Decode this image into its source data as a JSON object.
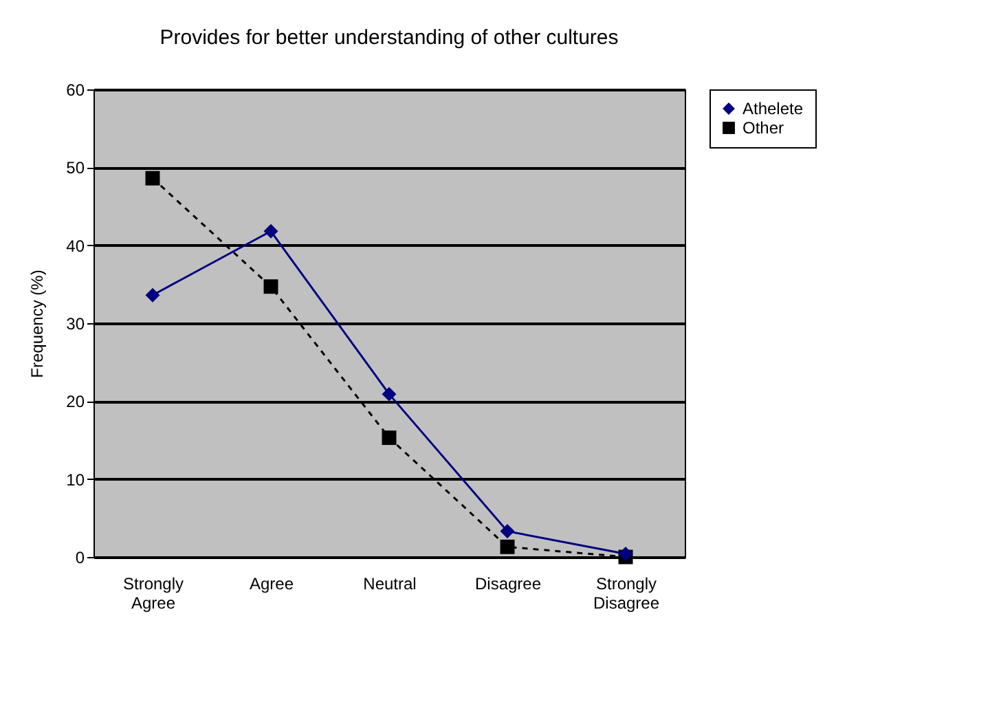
{
  "chart_data": {
    "type": "line",
    "title": "Provides for better understanding of other cultures",
    "ylabel": "Frequency (%)",
    "categories": [
      "Strongly Agree",
      "Agree",
      "Neutral",
      "Disagree",
      "Strongly Disagree"
    ],
    "series": [
      {
        "name": "Athelete",
        "color": "#000080",
        "values": [
          33.6,
          41.8,
          20.9,
          3.3,
          0.4
        ],
        "marker": "diamond",
        "line_style": "solid"
      },
      {
        "name": "Other",
        "color": "#000000",
        "values": [
          48.6,
          34.7,
          15.3,
          1.3,
          0
        ],
        "marker": "square",
        "line_style": "dashed"
      }
    ],
    "ylim": [
      0,
      60
    ],
    "yticks": [
      0,
      10,
      20,
      30,
      40,
      50,
      60
    ],
    "grid": "y",
    "legend": "right"
  }
}
